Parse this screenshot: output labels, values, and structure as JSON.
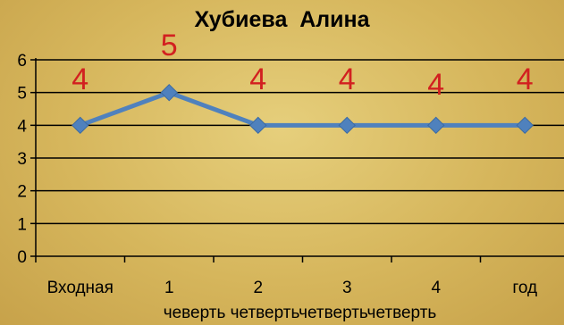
{
  "chart_data": {
    "type": "line",
    "title": "Хубиева  Алина",
    "categories": [
      "Входная",
      "1",
      "2",
      "3",
      "4",
      "год"
    ],
    "series": [
      {
        "values": [
          4,
          5,
          4,
          4,
          4,
          4
        ],
        "color": "#4f81bd"
      }
    ],
    "data_labels": [
      "4",
      "5",
      "4",
      "4",
      "4",
      "4"
    ],
    "y_ticks": [
      "0",
      "1",
      "2",
      "3",
      "4",
      "5",
      "6"
    ],
    "ylim": [
      0,
      6
    ],
    "xlabel": "",
    "ylabel": "",
    "grid": true,
    "legend": "none",
    "x_axis_note": "чеверть четвертьчетвертьчетверть"
  },
  "colors": {
    "background": "#d6b65c",
    "line": "#4f81bd",
    "marker": "#4f81bd",
    "data_label": "#d22020",
    "grid": "#000000"
  }
}
